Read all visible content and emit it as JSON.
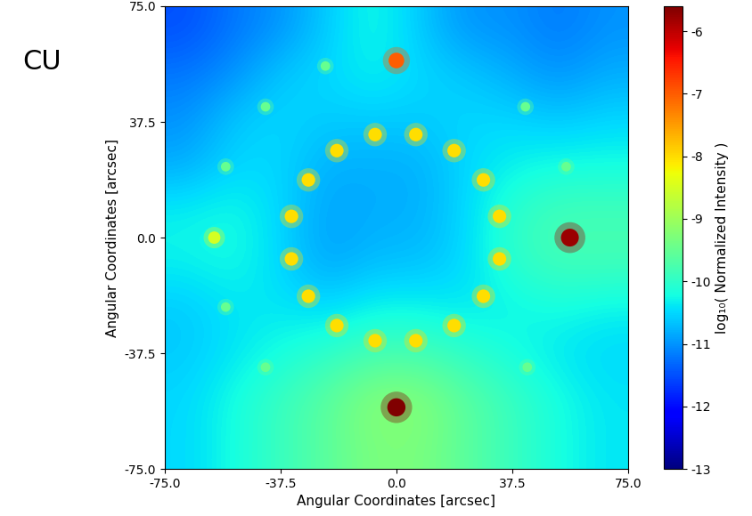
{
  "chart_data": {
    "type": "heatmap",
    "corner_text": "CU",
    "x_label": "Angular Coordinates [arcsec]",
    "y_label": "Angular Coordinates [arcsec]",
    "colorbar_label": "log₁₀( Normalized Intensity )",
    "color": "jet",
    "xlim": [
      -75.0,
      75.0
    ],
    "ylim": [
      -75.0,
      75.0
    ],
    "xticks": [
      -75.0,
      -37.5,
      0.0,
      37.5,
      75.0
    ],
    "yticks": [
      -75.0,
      -37.5,
      0.0,
      37.5,
      75.0
    ],
    "colorbar_range": [
      -13,
      -5.6
    ],
    "colorbar_ticks": [
      -13,
      -12,
      -11,
      -10,
      -9,
      -8,
      -7,
      -6
    ],
    "cells": [
      [
        -11.5,
        -11.2,
        -11.0,
        -10.6,
        -10.2,
        -10.6,
        -11.0,
        -11.0,
        -11.2,
        -11.0
      ],
      [
        -11.2,
        -11.0,
        -10.6,
        -10.5,
        -10.3,
        -10.5,
        -10.6,
        -10.8,
        -11.0,
        -10.8
      ],
      [
        -11.0,
        -10.6,
        -10.5,
        -10.6,
        -10.6,
        -10.6,
        -10.5,
        -10.5,
        -10.6,
        -10.5
      ],
      [
        -10.8,
        -10.5,
        -10.5,
        -10.8,
        -10.8,
        -10.8,
        -10.5,
        -10.3,
        -10.2,
        -10.2
      ],
      [
        -10.3,
        -10.2,
        -10.5,
        -10.9,
        -10.8,
        -10.8,
        -10.5,
        -10.0,
        -9.8,
        -9.8
      ],
      [
        -10.3,
        -10.2,
        -10.5,
        -10.9,
        -10.7,
        -10.7,
        -10.5,
        -10.0,
        -9.8,
        -9.8
      ],
      [
        -10.6,
        -10.4,
        -10.4,
        -10.5,
        -10.3,
        -10.3,
        -10.4,
        -10.3,
        -10.2,
        -10.3
      ],
      [
        -10.6,
        -10.4,
        -10.2,
        -10.0,
        -9.8,
        -9.8,
        -10.0,
        -10.2,
        -10.4,
        -10.5
      ],
      [
        -10.5,
        -10.2,
        -9.9,
        -9.6,
        -9.2,
        -9.2,
        -9.6,
        -9.9,
        -10.2,
        -10.4
      ],
      [
        -10.5,
        -10.2,
        -9.9,
        -9.6,
        -9.3,
        -9.3,
        -9.6,
        -9.9,
        -10.2,
        -10.4
      ]
    ],
    "points": {
      "x": [
        0.0,
        56.2,
        0.0,
        -59.0,
        -6.9,
        6.3,
        -19.3,
        18.7,
        -28.5,
        28.2,
        -34.0,
        33.4,
        -34.0,
        33.4,
        -28.5,
        28.2,
        -19.3,
        18.7,
        -6.9,
        6.3,
        -23.0,
        -42.4,
        -55.3,
        -55.3,
        -42.4,
        41.8,
        55.0,
        42.4
      ],
      "y": [
        57.4,
        0.0,
        -55.0,
        0.0,
        33.4,
        33.4,
        28.2,
        28.2,
        18.7,
        18.7,
        6.9,
        6.9,
        -6.9,
        -6.9,
        -19.0,
        -19.0,
        -28.5,
        -28.5,
        -33.4,
        -33.4,
        55.6,
        42.4,
        23.0,
        -22.5,
        -42.0,
        42.4,
        23.0,
        -42.0
      ],
      "values": [
        -7.0,
        -5.8,
        -5.6,
        -8.5,
        -8.0,
        -8.0,
        -8.0,
        -8.0,
        -8.0,
        -8.0,
        -8.0,
        -8.0,
        -8.0,
        -8.0,
        -8.0,
        -8.0,
        -8.0,
        -8.0,
        -8.0,
        -8.0,
        -9.5,
        -9.5,
        -9.5,
        -9.5,
        -9.5,
        -9.5,
        -9.5,
        -9.5
      ]
    }
  }
}
